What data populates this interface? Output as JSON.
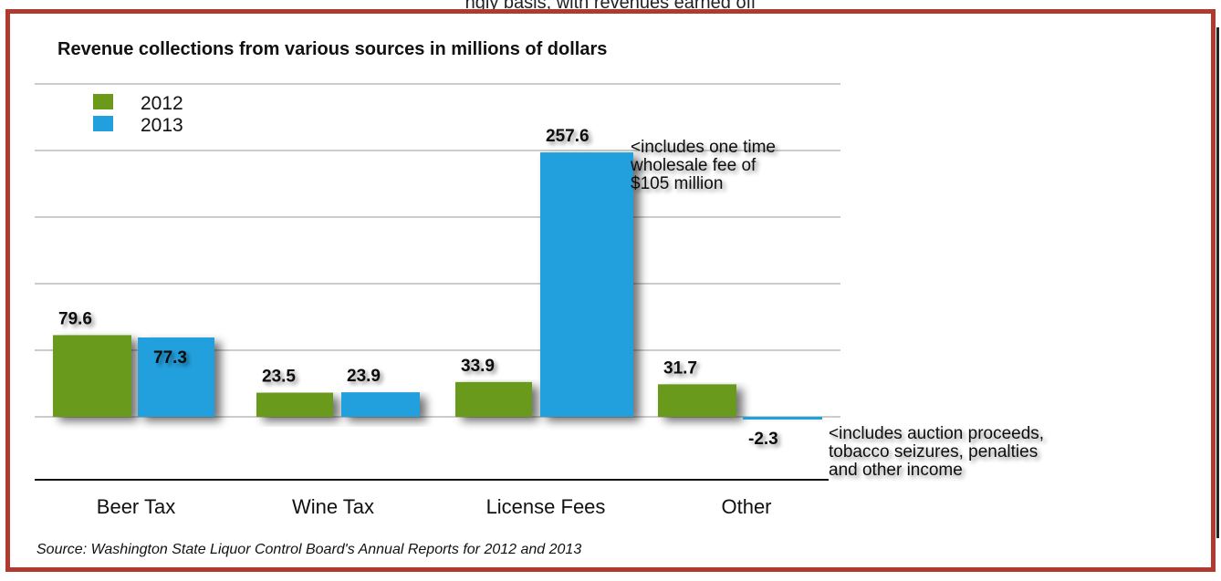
{
  "header_fragment": "ngly basis, with revenues earned off",
  "chart_data": {
    "type": "bar",
    "title": "Revenue collections from various sources in millions of dollars",
    "categories": [
      "Beer Tax",
      "Wine Tax",
      "License Fees",
      "Other"
    ],
    "series": [
      {
        "name": "2012",
        "color": "#6b9a1a",
        "values": [
          79.6,
          23.5,
          33.9,
          31.7
        ]
      },
      {
        "name": "2013",
        "color": "#21a0dd",
        "values": [
          77.3,
          23.9,
          257.6,
          -2.3
        ]
      }
    ],
    "value_labels": {
      "2012": [
        "79.6",
        "23.5",
        "33.9",
        "31.7"
      ],
      "2013": [
        "77.3",
        "23.9",
        "257.6",
        "-2.3"
      ]
    },
    "annotations": [
      {
        "lines": [
          "<includes one time",
          "wholesale fee of",
          "$105 million"
        ]
      },
      {
        "lines": [
          "<includes auction proceeds,",
          "tobacco seizures, penalties",
          "and other income"
        ]
      }
    ],
    "grid": true,
    "legend_position": "top-left",
    "source": "Source: Washington State Liquor Control Board's Annual Reports for 2012 and 2013"
  }
}
